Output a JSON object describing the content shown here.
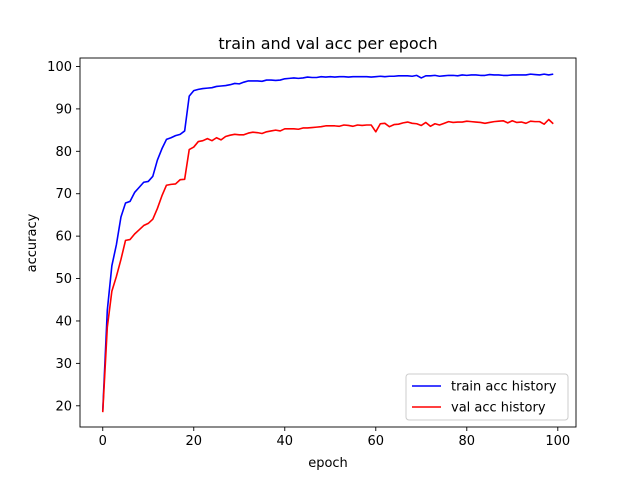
{
  "chart_data": {
    "type": "line",
    "title": "train and val acc per epoch",
    "xlabel": "epoch",
    "ylabel": "accuracy",
    "xlim": [
      -5,
      104
    ],
    "ylim": [
      15,
      102
    ],
    "xticks": [
      0,
      20,
      40,
      60,
      80,
      100
    ],
    "yticks": [
      20,
      30,
      40,
      50,
      60,
      70,
      80,
      90,
      100
    ],
    "grid": false,
    "legend_position": "lower-right",
    "series": [
      {
        "name": "train acc history",
        "color": "#0000ff",
        "x": [
          0,
          1,
          2,
          3,
          4,
          5,
          6,
          7,
          8,
          9,
          10,
          11,
          12,
          13,
          14,
          15,
          16,
          17,
          18,
          19,
          20,
          21,
          22,
          23,
          24,
          25,
          26,
          27,
          28,
          29,
          30,
          31,
          32,
          33,
          34,
          35,
          36,
          37,
          38,
          39,
          40,
          41,
          42,
          43,
          44,
          45,
          46,
          47,
          48,
          49,
          50,
          51,
          52,
          53,
          54,
          55,
          56,
          57,
          58,
          59,
          60,
          61,
          62,
          63,
          64,
          65,
          66,
          67,
          68,
          69,
          70,
          71,
          72,
          73,
          74,
          75,
          76,
          77,
          78,
          79,
          80,
          81,
          82,
          83,
          84,
          85,
          86,
          87,
          88,
          89,
          90,
          91,
          92,
          93,
          94,
          95,
          96,
          97,
          98,
          99
        ],
        "values": [
          18.8,
          42.5,
          53.0,
          58.0,
          64.5,
          67.8,
          68.2,
          70.3,
          71.5,
          72.7,
          72.9,
          74.1,
          77.9,
          80.6,
          82.8,
          83.2,
          83.7,
          84.0,
          84.8,
          93.0,
          94.3,
          94.6,
          94.8,
          94.9,
          95.0,
          95.3,
          95.4,
          95.5,
          95.7,
          96.0,
          95.9,
          96.3,
          96.6,
          96.6,
          96.6,
          96.5,
          96.8,
          96.8,
          96.7,
          96.8,
          97.1,
          97.2,
          97.3,
          97.2,
          97.3,
          97.5,
          97.4,
          97.4,
          97.6,
          97.5,
          97.6,
          97.5,
          97.6,
          97.6,
          97.5,
          97.6,
          97.6,
          97.6,
          97.6,
          97.5,
          97.6,
          97.7,
          97.6,
          97.7,
          97.7,
          97.8,
          97.8,
          97.8,
          97.7,
          97.9,
          97.3,
          97.8,
          97.8,
          97.9,
          97.7,
          97.8,
          97.9,
          97.9,
          97.8,
          98.0,
          97.9,
          98.0,
          98.0,
          97.9,
          97.9,
          98.1,
          98.0,
          98.0,
          97.9,
          97.9,
          98.0,
          98.0,
          98.0,
          98.0,
          98.2,
          98.1,
          98.0,
          98.2,
          98.0,
          98.2
        ]
      },
      {
        "name": "val acc history",
        "color": "#ff0000",
        "x": [
          0,
          1,
          2,
          3,
          4,
          5,
          6,
          7,
          8,
          9,
          10,
          11,
          12,
          13,
          14,
          15,
          16,
          17,
          18,
          19,
          20,
          21,
          22,
          23,
          24,
          25,
          26,
          27,
          28,
          29,
          30,
          31,
          32,
          33,
          34,
          35,
          36,
          37,
          38,
          39,
          40,
          41,
          42,
          43,
          44,
          45,
          46,
          47,
          48,
          49,
          50,
          51,
          52,
          53,
          54,
          55,
          56,
          57,
          58,
          59,
          60,
          61,
          62,
          63,
          64,
          65,
          66,
          67,
          68,
          69,
          70,
          71,
          72,
          73,
          74,
          75,
          76,
          77,
          78,
          79,
          80,
          81,
          82,
          83,
          84,
          85,
          86,
          87,
          88,
          89,
          90,
          91,
          92,
          93,
          94,
          95,
          96,
          97,
          98,
          99
        ],
        "values": [
          18.5,
          38.5,
          47.0,
          50.5,
          54.5,
          59.0,
          59.2,
          60.5,
          61.5,
          62.5,
          63.0,
          64.0,
          66.5,
          69.5,
          72.0,
          72.2,
          72.3,
          73.3,
          73.4,
          80.4,
          81.0,
          82.3,
          82.5,
          83.0,
          82.5,
          83.2,
          82.7,
          83.5,
          83.8,
          84.0,
          83.9,
          83.9,
          84.3,
          84.5,
          84.4,
          84.2,
          84.6,
          84.8,
          85.0,
          84.8,
          85.3,
          85.3,
          85.3,
          85.2,
          85.5,
          85.5,
          85.6,
          85.7,
          85.8,
          86.0,
          86.0,
          86.0,
          85.9,
          86.2,
          86.1,
          85.9,
          86.2,
          86.1,
          86.2,
          86.2,
          84.6,
          86.5,
          86.6,
          85.8,
          86.3,
          86.4,
          86.7,
          86.9,
          86.6,
          86.5,
          86.1,
          86.8,
          85.9,
          86.5,
          86.2,
          86.6,
          87.0,
          86.8,
          86.9,
          86.9,
          87.1,
          87.0,
          86.9,
          86.8,
          86.6,
          86.8,
          87.0,
          87.1,
          87.2,
          86.7,
          87.2,
          86.8,
          86.9,
          86.6,
          87.1,
          87.0,
          87.0,
          86.4,
          87.5,
          86.5
        ]
      }
    ]
  }
}
